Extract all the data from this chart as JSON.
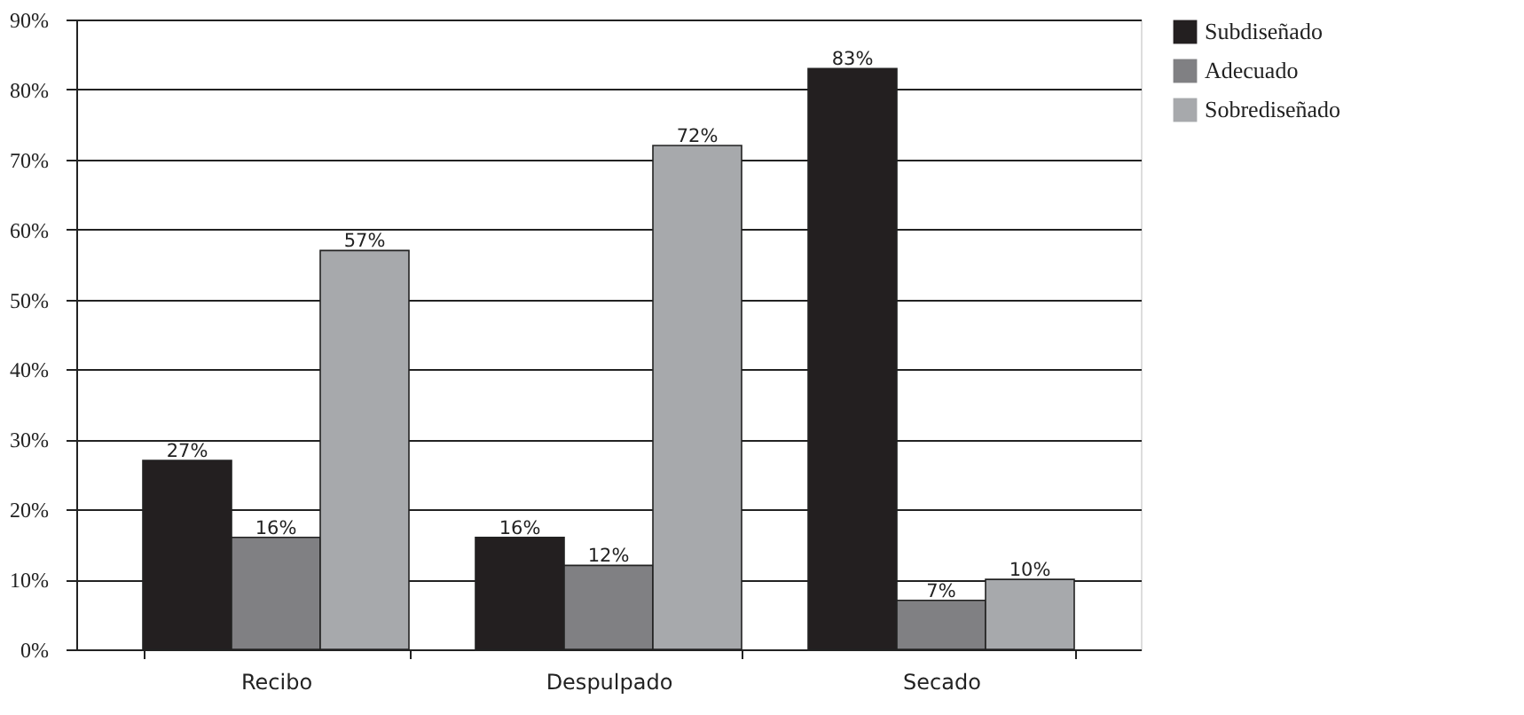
{
  "chart_data": {
    "type": "bar",
    "categories": [
      "Recibo",
      "Despulpado",
      "Secado"
    ],
    "series": [
      {
        "name": "Subdiseñado",
        "color": "#231f20",
        "values": [
          27,
          16,
          83
        ],
        "value_labels": [
          "27%",
          "16%",
          "83%"
        ]
      },
      {
        "name": "Adecuado",
        "color": "#808083",
        "values": [
          16,
          12,
          7
        ],
        "value_labels": [
          "16%",
          "12%",
          "7%"
        ]
      },
      {
        "name": "Sobrediseñado",
        "color": "#a7a9ac",
        "values": [
          57,
          72,
          10
        ],
        "value_labels": [
          "57%",
          "72%",
          "10%"
        ]
      }
    ],
    "ylim": [
      0,
      90
    ],
    "yticks": [
      {
        "value": 0,
        "label": "0%"
      },
      {
        "value": 10,
        "label": "10%"
      },
      {
        "value": 20,
        "label": "20%"
      },
      {
        "value": 30,
        "label": "30%"
      },
      {
        "value": 40,
        "label": "40%"
      },
      {
        "value": 50,
        "label": "50%"
      },
      {
        "value": 60,
        "label": "60%"
      },
      {
        "value": 70,
        "label": "70%"
      },
      {
        "value": 80,
        "label": "80%"
      },
      {
        "value": 90,
        "label": "90%"
      }
    ],
    "grid": "y",
    "legend": "right"
  }
}
